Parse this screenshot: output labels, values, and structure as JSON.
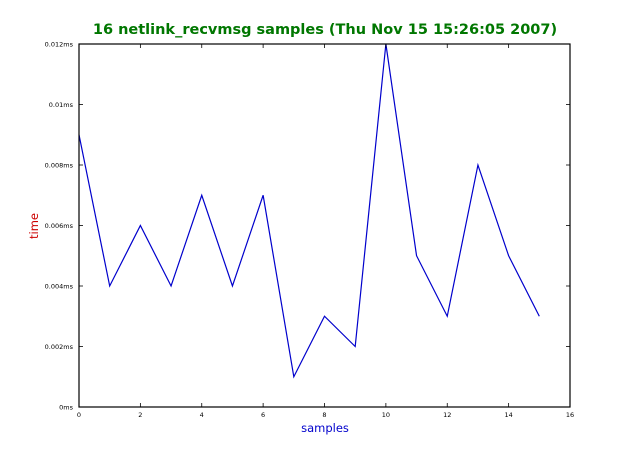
{
  "chart_data": {
    "type": "line",
    "title": "16 netlink_recvmsg samples (Thu Nov 15 15:26:05 2007)",
    "xlabel": "samples",
    "ylabel": "time",
    "xlim": [
      0,
      16
    ],
    "ylim": [
      0,
      0.012
    ],
    "x_ticks": [
      0,
      2,
      4,
      6,
      8,
      10,
      12,
      14,
      16
    ],
    "x_tick_labels": [
      "0",
      "2",
      "4",
      "6",
      "8",
      "10",
      "12",
      "14",
      "16"
    ],
    "y_ticks": [
      0,
      0.002,
      0.004,
      0.006,
      0.008,
      0.01,
      0.012
    ],
    "y_tick_labels": [
      "0ms",
      "0.002ms",
      "0.004ms",
      "0.006ms",
      "0.008ms",
      "0.01ms",
      "0.012ms"
    ],
    "grid": false,
    "legend": false,
    "series": [
      {
        "x": [
          0,
          1,
          2,
          3,
          4,
          5,
          6,
          7,
          8,
          9,
          10,
          11,
          12,
          13,
          14,
          15
        ],
        "values": [
          0.009,
          0.004,
          0.006,
          0.004,
          0.007,
          0.004,
          0.007,
          0.001,
          0.003,
          0.002,
          0.012,
          0.005,
          0.003,
          0.008,
          0.005,
          0.003
        ],
        "color": "#0000cc"
      }
    ],
    "colors": {
      "title": "#007700",
      "xlabel": "#0000cc",
      "ylabel": "#cc0000",
      "line": "#0000cc",
      "frame": "#000000"
    }
  }
}
